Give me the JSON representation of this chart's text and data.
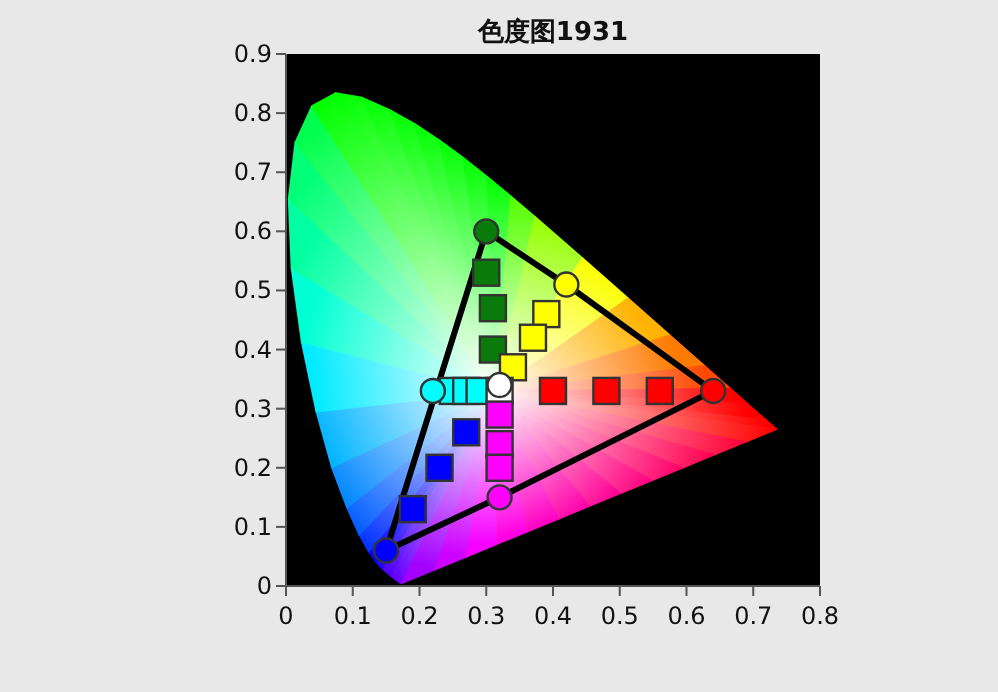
{
  "chart_data": {
    "type": "scatter",
    "title": "色度图1931",
    "xlim": [
      0,
      0.8
    ],
    "ylim": [
      0,
      0.9
    ],
    "xticks": [
      0,
      0.1,
      0.2,
      0.3,
      0.4,
      0.5,
      0.6,
      0.7,
      0.8
    ],
    "yticks": [
      0,
      0.1,
      0.2,
      0.3,
      0.4,
      0.5,
      0.6,
      0.7,
      0.8,
      0.9
    ],
    "series": [
      {
        "type": "line",
        "color": "#000000",
        "marker": "none",
        "x": [
          0.15,
          0.3,
          0.42,
          0.64
        ],
        "values": [
          0.06,
          0.6,
          0.51,
          0.33
        ]
      },
      {
        "type": "line",
        "color": "#000000",
        "marker": "none",
        "x": [
          0.15,
          0.32,
          0.64
        ],
        "values": [
          0.06,
          0.15,
          0.33
        ]
      },
      {
        "marker": "square",
        "colors": [
          "#0a7a0a",
          "#0a7a0a",
          "#0a7a0a",
          "#ffff00",
          "#ffff00",
          "#ffff00",
          "#ff0000",
          "#ff0000",
          "#ff0000",
          "#00ffff",
          "#00ffff",
          "#00ffff",
          "#ffffff",
          "#ff00ff",
          "#ff00ff",
          "#ff00ff",
          "#0000ff",
          "#0000ff",
          "#0000ff"
        ],
        "x": [
          0.3,
          0.31,
          0.31,
          0.39,
          0.37,
          0.34,
          0.4,
          0.48,
          0.56,
          0.25,
          0.27,
          0.29,
          0.32,
          0.32,
          0.32,
          0.32,
          0.27,
          0.23,
          0.19
        ],
        "values": [
          0.53,
          0.47,
          0.4,
          0.46,
          0.42,
          0.37,
          0.33,
          0.33,
          0.33,
          0.33,
          0.33,
          0.33,
          0.33,
          0.29,
          0.24,
          0.2,
          0.26,
          0.2,
          0.13
        ]
      },
      {
        "marker": "circle",
        "colors": [
          "#0a7a0a",
          "#ffff00",
          "#ff0000",
          "#ff00ff",
          "#0000ff",
          "#00ffff",
          "#ffffff"
        ],
        "x": [
          0.3,
          0.42,
          0.64,
          0.32,
          0.15,
          0.22,
          0.32
        ],
        "values": [
          0.6,
          0.51,
          0.33,
          0.15,
          0.06,
          0.33,
          0.34
        ]
      }
    ]
  }
}
